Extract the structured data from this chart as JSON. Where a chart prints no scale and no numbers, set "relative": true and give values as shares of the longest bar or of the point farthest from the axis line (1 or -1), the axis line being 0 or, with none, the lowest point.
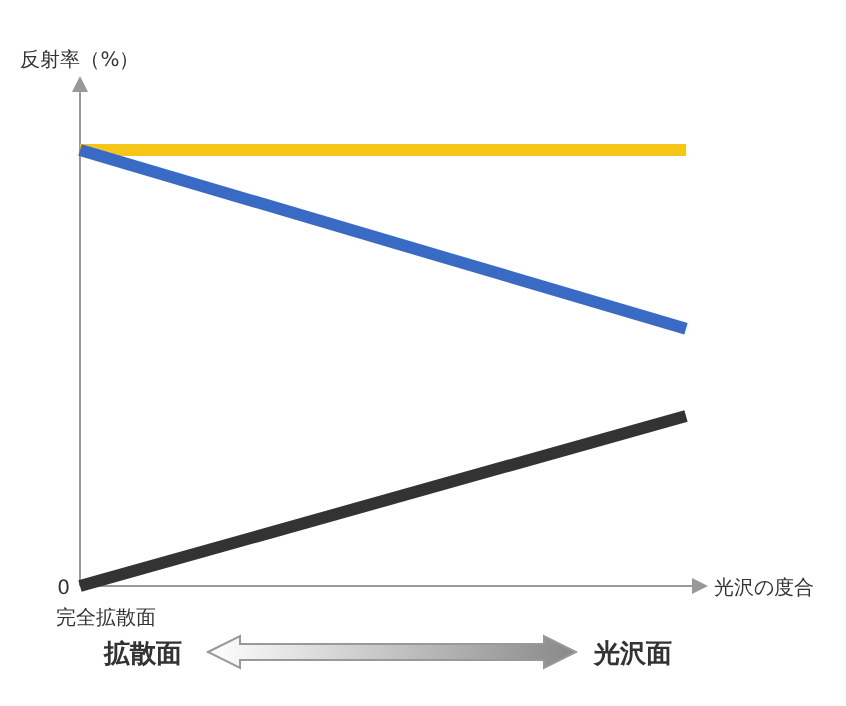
{
  "chart_data": {
    "type": "line",
    "relative": true,
    "ylabel": "反射率（%）",
    "xlabel": "光沢の度合",
    "categories": [
      null,
      null
    ],
    "series": [
      {
        "color": "#f5c518",
        "values": [
          1,
          1
        ]
      },
      {
        "color": "#3a6bc4",
        "values": [
          1,
          0.59
        ]
      },
      {
        "color": "#333333",
        "values": [
          0,
          0.39
        ]
      }
    ],
    "annotations": [
      "0",
      "完全拡散面",
      "拡散面",
      "光沢面"
    ]
  }
}
